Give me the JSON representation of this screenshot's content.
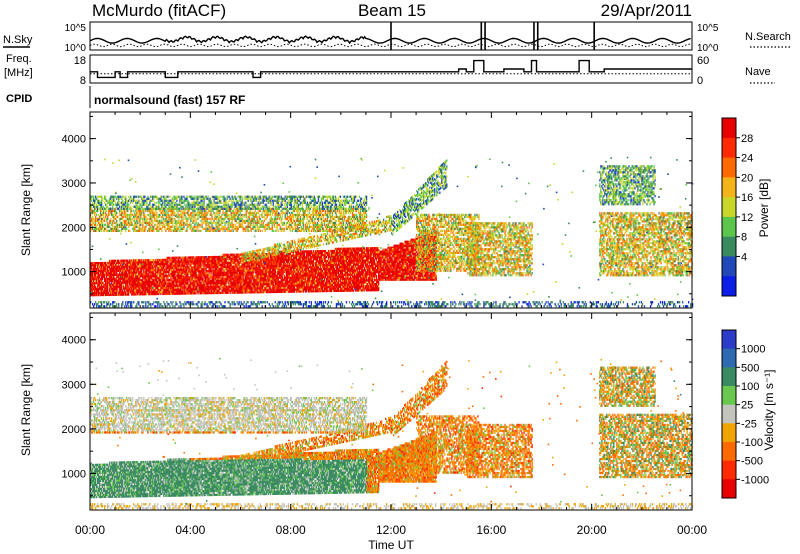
{
  "chart_data": {
    "type": "heatmap",
    "header": {
      "title": "McMurdo (fitACF)",
      "beam": "Beam 15",
      "date": "29/Apr/2011",
      "cpid_label": "CPID",
      "cpid_value": "normalsound (fast) 157 RF"
    },
    "noise_panel": {
      "left_label": "N.Sky",
      "right_label": "N.Search",
      "left_ticks": [
        "10^5",
        "10^0"
      ],
      "right_ticks": [
        "10^5",
        "10^0"
      ]
    },
    "freq_panel": {
      "left_label_1": "Freq.",
      "left_label_2": "[MHz]",
      "right_label": "Nave",
      "left_ticks": [
        "18",
        "8"
      ],
      "right_ticks": [
        "60",
        "0"
      ],
      "freq_steps": [
        [
          0,
          12
        ],
        [
          0.3,
          10
        ],
        [
          1.0,
          12
        ],
        [
          1.2,
          10
        ],
        [
          1.5,
          12
        ],
        [
          3.0,
          10
        ],
        [
          3.5,
          12
        ],
        [
          6.5,
          10
        ],
        [
          6.8,
          12
        ],
        [
          14.7,
          13
        ],
        [
          15.0,
          12
        ],
        [
          15.3,
          16
        ],
        [
          15.7,
          12
        ],
        [
          16.5,
          13
        ],
        [
          17.3,
          12
        ],
        [
          17.6,
          16
        ],
        [
          17.8,
          12
        ],
        [
          19.5,
          16
        ],
        [
          19.9,
          12
        ],
        [
          20.5,
          13
        ],
        [
          24,
          13
        ]
      ]
    },
    "x": {
      "label": "Time UT",
      "ticks": [
        "00:00",
        "04:00",
        "08:00",
        "12:00",
        "16:00",
        "20:00",
        "00:00"
      ],
      "range_hours": [
        0,
        24
      ]
    },
    "y": {
      "label": "Slant Range [km]",
      "ticks": [
        "1000",
        "2000",
        "3000",
        "4000"
      ],
      "range_km": [
        180,
        4600
      ]
    },
    "power_panel": {
      "colorbar_label": "Power [dB]",
      "colorbar_ticks": [
        "4",
        "8",
        "12",
        "16",
        "20",
        "24",
        "28"
      ],
      "colors": [
        "#0a1ee6",
        "#2048b8",
        "#3a8a60",
        "#5cc64c",
        "#c8d62a",
        "#f2b418",
        "#ff6a00",
        "#ff2a00",
        "#e60000"
      ]
    },
    "velocity_panel": {
      "colorbar_label": "Velocity [m s⁻¹]",
      "colorbar_ticks": [
        "1000",
        "500",
        "100",
        "25",
        "-25",
        "-100",
        "-500",
        "-1000"
      ],
      "colors": [
        "#2a3cc8",
        "#2e6ab0",
        "#3a8a62",
        "#68c850",
        "#c4c4be",
        "#f0a400",
        "#ff6a00",
        "#ff2a00",
        "#e60000"
      ]
    }
  }
}
